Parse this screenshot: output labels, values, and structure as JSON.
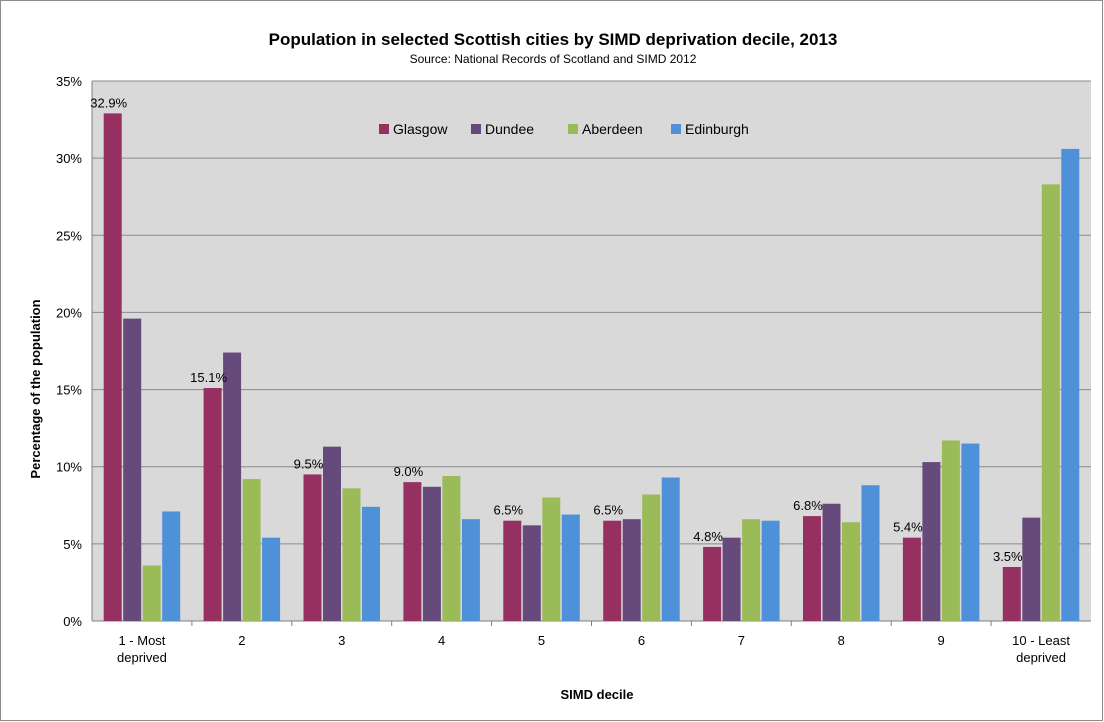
{
  "chart_data": {
    "type": "bar",
    "title": "Population in selected Scottish cities by SIMD deprivation decile, 2013",
    "subtitle": "Source: National Records of Scotland and SIMD 2012",
    "xlabel": "SIMD decile",
    "ylabel": "Percentage of the population",
    "ylim": [
      0,
      35
    ],
    "yticks": [
      "0%",
      "5%",
      "10%",
      "15%",
      "20%",
      "25%",
      "30%",
      "35%"
    ],
    "categories": [
      [
        "1 - Most",
        "deprived"
      ],
      [
        "2"
      ],
      [
        "3"
      ],
      [
        "4"
      ],
      [
        "5"
      ],
      [
        "6"
      ],
      [
        "7"
      ],
      [
        "8"
      ],
      [
        "9"
      ],
      [
        "10 - Least",
        "deprived"
      ]
    ],
    "series": [
      {
        "name": "Glasgow",
        "color": "#953060",
        "values": [
          32.9,
          15.1,
          9.5,
          9.0,
          6.5,
          6.5,
          4.8,
          6.8,
          5.4,
          3.5
        ]
      },
      {
        "name": "Dundee",
        "color": "#664a7c",
        "values": [
          19.6,
          17.4,
          11.3,
          8.7,
          6.2,
          6.6,
          5.4,
          7.6,
          10.3,
          6.7
        ]
      },
      {
        "name": "Aberdeen",
        "color": "#9bbb59",
        "values": [
          3.6,
          9.2,
          8.6,
          9.4,
          8.0,
          8.2,
          6.6,
          6.4,
          11.7,
          28.3
        ]
      },
      {
        "name": "Edinburgh",
        "color": "#4f91d9",
        "values": [
          7.1,
          5.4,
          7.4,
          6.6,
          6.9,
          9.3,
          6.5,
          8.8,
          11.5,
          30.6
        ]
      }
    ],
    "data_labels": [
      "32.9%",
      "15.1%",
      "9.5%",
      "9.0%",
      "6.5%",
      "6.5%",
      "4.8%",
      "6.8%",
      "5.4%",
      "3.5%"
    ],
    "plot_background": "#d9d9d9",
    "grid": true,
    "legend_position": "top-center"
  }
}
